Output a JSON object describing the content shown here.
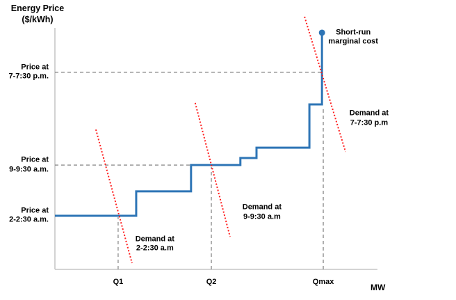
{
  "titles": {
    "y_axis_line1": "Energy Price",
    "y_axis_line2": "($/kWh)",
    "x_axis": "MW"
  },
  "colors": {
    "supply": "#2E75B6",
    "demand": "#FF1F1F",
    "guide": "#808080",
    "axis": "#C6C6C6",
    "text": "#000000",
    "background": "#FFFFFF"
  },
  "chart_data": {
    "type": "line",
    "title": "",
    "xlabel": "MW",
    "ylabel": "Energy Price ($/kWh)",
    "xlim": [
      0,
      100
    ],
    "ylim": [
      0,
      100
    ],
    "grid": false,
    "legend": "none",
    "note": "Qualitative electricity-market diagram: blue stepped short-run marginal cost (supply) curve with endpoint dot, three dotted red demand curves at different times of day, dashed price/quantity guide lines. Coordinates are normalized 0-100 on both axes (no numeric ticks shown in original).",
    "series": [
      {
        "name": "Short-run marginal cost",
        "role": "supply-step",
        "line_style": "solid",
        "color_key": "supply",
        "width": 3,
        "marker": "dot-at-end",
        "points": [
          [
            0,
            22.2
          ],
          [
            25.2,
            22.2
          ],
          [
            25.2,
            32.3
          ],
          [
            42.2,
            32.3
          ],
          [
            42.2,
            43.2
          ],
          [
            57.5,
            43.2
          ],
          [
            57.5,
            46.1
          ],
          [
            62.5,
            46.1
          ],
          [
            62.5,
            50.4
          ],
          [
            78.9,
            50.4
          ],
          [
            78.9,
            68.3
          ],
          [
            82.8,
            68.3
          ],
          [
            82.8,
            98.0
          ]
        ]
      },
      {
        "name": "Demand at 2-2:30 a.m",
        "role": "demand",
        "line_style": "dotted",
        "color_key": "demand",
        "width": 2,
        "points": [
          [
            12.7,
            57.9
          ],
          [
            23.9,
            2.6
          ]
        ]
      },
      {
        "name": "Demand at 9-9:30 a.m",
        "role": "demand",
        "line_style": "dotted",
        "color_key": "demand",
        "width": 2,
        "points": [
          [
            43.5,
            68.9
          ],
          [
            54.3,
            13.5
          ]
        ]
      },
      {
        "name": "Demand at 7-7:30 p.m",
        "role": "demand",
        "line_style": "dotted",
        "color_key": "demand",
        "width": 2,
        "points": [
          [
            77.4,
            104.6
          ],
          [
            90.1,
            48.7
          ]
        ]
      }
    ],
    "guide_lines": [
      {
        "type": "h",
        "y": 81.6,
        "x_from": 0,
        "x_to": 82.8,
        "meaning": "Price at 7-7:30 p.m."
      },
      {
        "type": "h",
        "y": 43.2,
        "x_from": 0,
        "x_to": 42.2,
        "meaning": "Price at 9-9:30 a.m."
      },
      {
        "type": "v",
        "x": 19.6,
        "y_from": 0,
        "y_to": 21.6,
        "meaning": "Q1"
      },
      {
        "type": "v",
        "x": 48.5,
        "y_from": 0,
        "y_to": 42.4,
        "meaning": "Q2"
      },
      {
        "type": "v",
        "x": 83.2,
        "y_from": 0,
        "y_to": 66.9,
        "meaning": "Qmax"
      }
    ],
    "x_ticks": [
      {
        "label": "Q1",
        "x": 19.6
      },
      {
        "label": "Q2",
        "x": 48.5
      },
      {
        "label": "Qmax",
        "x": 83.2
      }
    ],
    "y_ticks": [
      {
        "line1": "Price at",
        "line2": "7-7:30 p.m.",
        "y": 81.6
      },
      {
        "line1": "Price at",
        "line2": "9-9:30 a.m.",
        "y": 43.2
      },
      {
        "line1": "Price at",
        "line2": "2-2:30 a.m.",
        "y": 22.2
      }
    ],
    "annotations": [
      {
        "line1": "Short-run",
        "line2": "marginal cost",
        "x": 92.5,
        "y": 96.0
      },
      {
        "line1": "Demand at",
        "line2": "2-2:30 a.m",
        "x": 31.0,
        "y": 10.4
      },
      {
        "line1": "Demand at",
        "line2": "9-9:30 a.m",
        "x": 64.2,
        "y": 23.6
      },
      {
        "line1": "Demand at",
        "line2": "7-7:30 p.m",
        "x": 97.4,
        "y": 62.5
      }
    ]
  }
}
